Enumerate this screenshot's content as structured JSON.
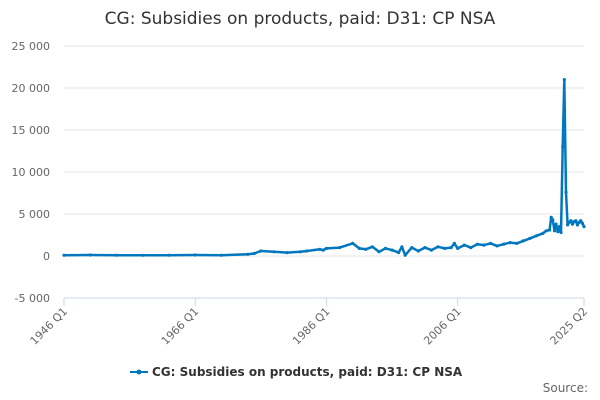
{
  "chart_data": {
    "type": "line",
    "title": "CG: Subsidies on products, paid: D31: CP NSA",
    "xlabel": "",
    "ylabel": "",
    "series": [
      {
        "name": "CG: Subsidies on products, paid: D31: CP NSA",
        "color": "#0077be",
        "x": [
          "1946 Q1",
          "1950 Q1",
          "1954 Q1",
          "1958 Q1",
          "1962 Q1",
          "1966 Q1",
          "1970 Q1",
          "1974 Q1",
          "1975 Q1",
          "1976 Q1",
          "1978 Q1",
          "1980 Q1",
          "1982 Q1",
          "1983 Q1",
          "1985 Q1",
          "1985 Q3",
          "1986 Q1",
          "1988 Q1",
          "1990 Q1",
          "1991 Q1",
          "1992 Q1",
          "1993 Q1",
          "1994 Q1",
          "1995 Q1",
          "1996 Q1",
          "1997 Q1",
          "1997 Q3",
          "1998 Q1",
          "1999 Q1",
          "2000 Q1",
          "2001 Q1",
          "2002 Q1",
          "2003 Q1",
          "2004 Q1",
          "2005 Q1",
          "2005 Q3",
          "2006 Q1",
          "2007 Q1",
          "2008 Q1",
          "2009 Q1",
          "2010 Q1",
          "2011 Q1",
          "2012 Q1",
          "2013 Q1",
          "2014 Q1",
          "2015 Q1",
          "2016 Q1",
          "2017 Q1",
          "2018 Q1",
          "2019 Q1",
          "2019 Q3",
          "2020 Q1",
          "2020 Q2",
          "2020 Q3",
          "2020 Q4",
          "2021 Q1",
          "2021 Q2",
          "2021 Q3",
          "2021 Q4",
          "2022 Q1",
          "2022 Q2",
          "2022 Q3",
          "2022 Q4",
          "2023 Q1",
          "2023 Q2",
          "2023 Q3",
          "2023 Q4",
          "2024 Q1",
          "2024 Q2",
          "2024 Q3",
          "2024 Q4",
          "2025 Q1",
          "2025 Q2"
        ],
        "values": [
          100,
          120,
          100,
          80,
          100,
          120,
          100,
          200,
          300,
          600,
          500,
          400,
          500,
          600,
          800,
          700,
          900,
          1000,
          1500,
          900,
          800,
          1100,
          500,
          900,
          700,
          400,
          1100,
          100,
          1000,
          600,
          1000,
          700,
          1100,
          900,
          1000,
          1500,
          900,
          1300,
          1000,
          1400,
          1300,
          1500,
          1200,
          1400,
          1600,
          1500,
          1800,
          2100,
          2400,
          2700,
          3000,
          3100,
          4600,
          4300,
          3000,
          3800,
          2900,
          3500,
          2800,
          13000,
          21000,
          7600,
          3700,
          4000,
          4200,
          3800,
          4100,
          4200,
          3700,
          4000,
          4200,
          3900,
          3500
        ]
      }
    ],
    "x_ticks": [
      "1946 Q1",
      "1966 Q1",
      "1986 Q1",
      "2006 Q1",
      "2025 Q2"
    ],
    "y_ticks": [
      "-5 000",
      "0",
      "5 000",
      "10 000",
      "15 000",
      "20 000",
      "25 000"
    ],
    "ylim": [
      -5000,
      25000
    ],
    "grid": "horizontal",
    "legend_position": "bottom-center",
    "source_label": "Source:"
  }
}
